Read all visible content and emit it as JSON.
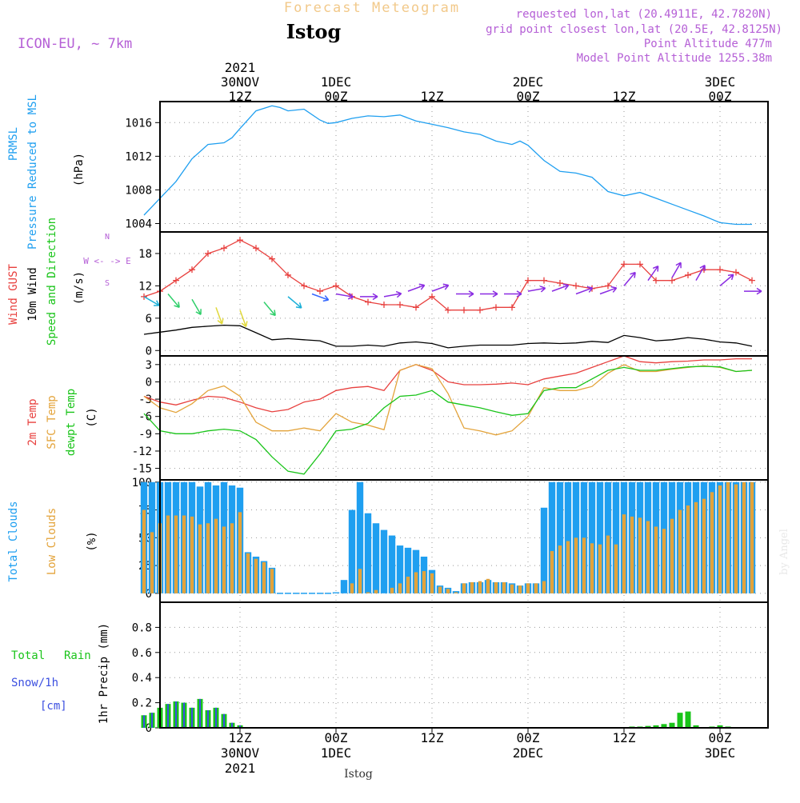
{
  "header": {
    "app_title": "Forecast Meteogram",
    "location": "Istog",
    "model": "ICON-EU, ~ 7km",
    "requested": "requested lon,lat (20.4911E, 42.7820N)",
    "gridpoint": "grid point closest lon,lat (20.5E, 42.8125N)",
    "point_alt": "Point Altitude 477m",
    "model_alt": "Model Point Altitude 1255.38m",
    "watermark": "by Angel",
    "footer": "Istog"
  },
  "colors": {
    "blue": "#1f9ff0",
    "red": "#e8403e",
    "orange": "#e3a33a",
    "green": "#19c419",
    "purple": "#b55fd6",
    "black": "#000000"
  },
  "time_axis": {
    "top": [
      {
        "hour": 12,
        "l1": "12Z",
        "l2": "30NOV",
        "l3": "2021"
      },
      {
        "hour": 24,
        "l1": "00Z",
        "l2": "1DEC"
      },
      {
        "hour": 36,
        "l1": "12Z"
      },
      {
        "hour": 48,
        "l1": "00Z",
        "l2": "2DEC"
      },
      {
        "hour": 60,
        "l1": "12Z"
      },
      {
        "hour": 72,
        "l1": "00Z",
        "l2": "3DEC"
      }
    ],
    "bottom": [
      {
        "hour": 12,
        "l1": "12Z",
        "l2": "30NOV",
        "l3": "2021"
      },
      {
        "hour": 24,
        "l1": "00Z",
        "l2": "1DEC"
      },
      {
        "hour": 36,
        "l1": "12Z"
      },
      {
        "hour": 48,
        "l1": "00Z",
        "l2": "2DEC"
      },
      {
        "hour": 60,
        "l1": "12Z"
      },
      {
        "hour": 72,
        "l1": "00Z",
        "l2": "3DEC"
      }
    ]
  },
  "chart_data": [
    {
      "type": "line",
      "id": "pressure",
      "labels": {
        "l1": "PRMSL",
        "l2": "Pressure Reduced to MSL",
        "unit": "(hPa)"
      },
      "yticks": [
        1004,
        1008,
        1012,
        1016
      ],
      "ylim": [
        1003,
        1018.5
      ],
      "x": [
        0,
        2,
        4,
        6,
        8,
        10,
        11,
        12,
        14,
        16,
        17,
        18,
        20,
        22,
        23,
        24,
        26,
        28,
        30,
        32,
        34,
        36,
        38,
        40,
        42,
        44,
        46,
        47,
        48,
        50,
        52,
        54,
        56,
        58,
        60,
        62,
        64,
        66,
        68,
        70,
        72,
        74,
        76
      ],
      "series": [
        {
          "name": "PRMSL",
          "color": "#1f9ff0",
          "values": [
            1005,
            1007,
            1009,
            1011.7,
            1013.4,
            1013.6,
            1014.2,
            1015.3,
            1017.4,
            1018,
            1017.8,
            1017.4,
            1017.6,
            1016.3,
            1015.9,
            1016,
            1016.5,
            1016.8,
            1016.7,
            1016.9,
            1016.2,
            1015.8,
            1015.4,
            1014.9,
            1014.6,
            1013.8,
            1013.4,
            1013.8,
            1013.3,
            1011.5,
            1010.2,
            1010,
            1009.5,
            1007.8,
            1007.3,
            1007.7,
            1007,
            1006.3,
            1005.6,
            1004.9,
            1004.1,
            1003.9,
            1003.9
          ]
        }
      ]
    },
    {
      "type": "line",
      "id": "wind",
      "labels": {
        "gust": "Wind GUST",
        "wind10": "10m Wind",
        "speed": "Speed and Direction",
        "unit": "(m/s)",
        "compass": "W <- -> E",
        "compass_n": "N",
        "compass_s": "S"
      },
      "yticks": [
        0,
        6,
        12,
        18
      ],
      "ylim": [
        -1,
        22
      ],
      "x": [
        0,
        2,
        4,
        6,
        8,
        10,
        12,
        14,
        16,
        18,
        20,
        22,
        24,
        26,
        28,
        30,
        32,
        34,
        36,
        38,
        40,
        42,
        44,
        46,
        48,
        50,
        52,
        54,
        56,
        58,
        60,
        62,
        64,
        66,
        68,
        70,
        72,
        74,
        76
      ],
      "series": [
        {
          "name": "Wind GUST",
          "color": "#e8403e",
          "marker": "+",
          "values": [
            10,
            11,
            13,
            15,
            18,
            19,
            20.5,
            19,
            17,
            14,
            12,
            11,
            12,
            10,
            9,
            8.5,
            8.5,
            8,
            10,
            7.5,
            7.5,
            7.5,
            8,
            8,
            13,
            13,
            12.5,
            12,
            11.5,
            12,
            16,
            16,
            13,
            13,
            14,
            15,
            15,
            14.5,
            13
          ]
        },
        {
          "name": "10m Wind",
          "color": "#000000",
          "values": [
            3,
            3.4,
            3.8,
            4.3,
            4.5,
            4.7,
            4.6,
            3.3,
            2,
            2.2,
            2,
            1.8,
            0.8,
            0.8,
            1,
            0.8,
            1.4,
            1.6,
            1.3,
            0.5,
            0.8,
            1,
            1,
            1,
            1.3,
            1.4,
            1.3,
            1.4,
            1.7,
            1.5,
            2.8,
            2.4,
            1.8,
            2,
            2.4,
            2.1,
            1.6,
            1.4,
            0.8
          ]
        }
      ],
      "arrows": {
        "x": [
          0,
          3,
          6,
          9,
          12,
          15,
          18,
          21,
          24,
          27,
          30,
          33,
          36,
          39,
          42,
          45,
          48,
          51,
          54,
          57,
          60,
          63,
          66,
          69,
          72,
          75
        ],
        "speed": [
          10,
          10.5,
          9.5,
          8,
          7.5,
          9,
          10,
          10.5,
          10.5,
          10,
          10,
          11,
          11,
          10.5,
          10.5,
          10.5,
          11,
          11,
          10.5,
          10.5,
          12,
          13,
          13.5,
          13,
          12,
          11
        ],
        "dir": [
          300,
          320,
          330,
          340,
          340,
          320,
          310,
          290,
          280,
          270,
          260,
          250,
          250,
          270,
          270,
          270,
          260,
          250,
          250,
          250,
          220,
          215,
          210,
          210,
          230,
          270
        ]
      }
    },
    {
      "type": "line",
      "id": "temp",
      "labels": {
        "t2m": "2m Temp",
        "sfc": "SFC Temp",
        "dewpt": "dewpt Temp",
        "unit": "(C)"
      },
      "yticks": [
        3,
        0,
        -3,
        -6,
        -9,
        -12,
        -15
      ],
      "ylim": [
        -17,
        4.5
      ],
      "x": [
        0,
        2,
        4,
        6,
        8,
        10,
        12,
        14,
        16,
        18,
        20,
        22,
        24,
        26,
        28,
        30,
        32,
        34,
        36,
        38,
        40,
        42,
        44,
        46,
        48,
        50,
        52,
        54,
        56,
        58,
        60,
        62,
        64,
        66,
        68,
        70,
        72,
        74,
        76
      ],
      "series": [
        {
          "name": "2m Temp",
          "color": "#e8403e",
          "values": [
            -2.5,
            -3.5,
            -4,
            -3.2,
            -2.5,
            -2.7,
            -3.5,
            -4.5,
            -5.2,
            -4.8,
            -3.5,
            -3,
            -1.5,
            -1,
            -0.8,
            -1.5,
            2,
            3,
            2,
            0,
            -0.5,
            -0.5,
            -0.4,
            -0.2,
            -0.5,
            0.5,
            1,
            1.5,
            2.5,
            3.5,
            4.5,
            3.5,
            3.3,
            3.5,
            3.6,
            3.8,
            3.8,
            4,
            4
          ]
        },
        {
          "name": "SFC Temp",
          "color": "#e3a33a",
          "values": [
            -2.5,
            -4.5,
            -5.3,
            -3.8,
            -1.5,
            -0.7,
            -2.5,
            -7,
            -8.5,
            -8.5,
            -8,
            -8.5,
            -5.5,
            -7,
            -7.5,
            -8.3,
            2,
            3,
            2.3,
            -2,
            -8,
            -8.5,
            -9.2,
            -8.5,
            -6,
            -1,
            -1.5,
            -1.5,
            -0.8,
            1.5,
            3,
            1.8,
            1.8,
            2.2,
            2.5,
            2.8,
            2.5,
            1.8,
            2
          ]
        },
        {
          "name": "dewpt Temp",
          "color": "#19c419",
          "values": [
            -5.5,
            -8.5,
            -9,
            -9,
            -8.5,
            -8.2,
            -8.5,
            -10,
            -13,
            -15.5,
            -16,
            -12.5,
            -8.5,
            -8.2,
            -7.2,
            -4.5,
            -2.5,
            -2.3,
            -1.5,
            -3.5,
            -4,
            -4.5,
            -5.2,
            -5.8,
            -5.5,
            -1.5,
            -1,
            -1,
            0.5,
            2,
            2.5,
            2,
            2,
            2.3,
            2.6,
            2.7,
            2.6,
            1.8,
            2
          ]
        }
      ]
    },
    {
      "type": "bar",
      "id": "clouds",
      "labels": {
        "total": "Total Clouds",
        "low": "Low Clouds",
        "unit": "(%)"
      },
      "yticks": [
        0,
        25,
        50,
        75,
        100
      ],
      "ylim": [
        -8,
        102
      ],
      "x": [
        0,
        1,
        2,
        3,
        4,
        5,
        6,
        7,
        8,
        9,
        10,
        11,
        12,
        13,
        14,
        15,
        16,
        17,
        18,
        19,
        20,
        21,
        22,
        23,
        24,
        25,
        26,
        27,
        28,
        29,
        30,
        31,
        32,
        33,
        34,
        35,
        36,
        37,
        38,
        39,
        40,
        41,
        42,
        43,
        44,
        45,
        46,
        47,
        48,
        49,
        50,
        51,
        52,
        53,
        54,
        55,
        56,
        57,
        58,
        59,
        60,
        61,
        62,
        63,
        64,
        65,
        66,
        67,
        68,
        69,
        70,
        71,
        72,
        73,
        74,
        75,
        76
      ],
      "series": [
        {
          "name": "Total Clouds",
          "color": "#1f9ff0",
          "values": [
            100,
            100,
            100,
            100,
            100,
            100,
            100,
            96,
            100,
            97,
            100,
            97,
            95,
            37,
            33,
            29,
            23,
            0,
            0,
            0,
            0,
            0,
            0,
            0,
            1,
            12,
            75,
            100,
            72,
            63,
            57,
            52,
            43,
            41,
            39,
            33,
            21,
            7,
            5,
            2,
            9,
            10,
            10,
            12,
            10,
            10,
            9,
            7,
            9,
            9,
            77,
            100,
            100,
            100,
            100,
            100,
            100,
            100,
            100,
            100,
            100,
            100,
            100,
            100,
            100,
            100,
            100,
            100,
            100,
            100,
            100,
            100,
            100,
            100,
            100,
            100,
            100
          ]
        },
        {
          "name": "Low Clouds",
          "color": "#e3a33a",
          "values": [
            75,
            55,
            63,
            70,
            70,
            70,
            69,
            62,
            63,
            67,
            60,
            63,
            73,
            36,
            31,
            28,
            22,
            0,
            0,
            0,
            0,
            0,
            0,
            0,
            0,
            0,
            9,
            22,
            1,
            3,
            0,
            5,
            9,
            15,
            19,
            20,
            18,
            6,
            4,
            1,
            9,
            10,
            11,
            13,
            10,
            10,
            8,
            7,
            9,
            9,
            11,
            38,
            43,
            47,
            50,
            50,
            45,
            44,
            52,
            44,
            71,
            69,
            68,
            65,
            60,
            58,
            67,
            75,
            79,
            82,
            85,
            91,
            97,
            100,
            98,
            100,
            100
          ]
        }
      ]
    },
    {
      "type": "bar",
      "id": "precip",
      "labels": {
        "total": "Total",
        "rain": "Rain",
        "snow": "Snow/1h",
        "cm": "[cm]",
        "axis": "1hr Precip (mm)"
      },
      "yticks": [
        0,
        0.2,
        0.4,
        0.6,
        0.8
      ],
      "ylim": [
        0,
        1
      ],
      "x": [
        0,
        1,
        2,
        3,
        4,
        5,
        6,
        7,
        8,
        9,
        10,
        11,
        12,
        13,
        14,
        15,
        16,
        17,
        18,
        19,
        20,
        21,
        22,
        23,
        24,
        25,
        26,
        27,
        28,
        29,
        30,
        31,
        32,
        33,
        34,
        35,
        36,
        37,
        38,
        39,
        40,
        41,
        42,
        43,
        44,
        45,
        46,
        47,
        48,
        49,
        50,
        51,
        52,
        53,
        54,
        55,
        56,
        57,
        58,
        59,
        60,
        61,
        62,
        63,
        64,
        65,
        66,
        67,
        68,
        69,
        70,
        71,
        72,
        73,
        74,
        75,
        76
      ],
      "series": [
        {
          "name": "Total Rain",
          "color": "#19c419",
          "values": [
            0.1,
            0.12,
            0.16,
            0.19,
            0.21,
            0.2,
            0.16,
            0.23,
            0.14,
            0.16,
            0.11,
            0.04,
            0.02,
            0,
            0,
            0,
            0,
            0,
            0,
            0,
            0,
            0,
            0,
            0,
            0,
            0,
            0,
            0,
            0,
            0,
            0,
            0,
            0,
            0,
            0,
            0,
            0,
            0,
            0,
            0,
            0,
            0,
            0,
            0,
            0,
            0,
            0,
            0,
            0,
            0,
            0,
            0,
            0,
            0,
            0,
            0,
            0,
            0,
            0,
            0,
            0,
            0.01,
            0.01,
            0.015,
            0.02,
            0.03,
            0.04,
            0.12,
            0.13,
            0.02,
            0,
            0.01,
            0.02,
            0.01,
            0,
            0,
            0
          ]
        },
        {
          "name": "Snow/1h",
          "color": "#3b4fe0",
          "values": [
            0.1,
            0.12,
            0.16,
            0.19,
            0.21,
            0.2,
            0.16,
            0.23,
            0.14,
            0.16,
            0.11,
            0.04,
            0.02,
            0,
            0,
            0,
            0,
            0,
            0,
            0,
            0,
            0,
            0,
            0,
            0,
            0,
            0,
            0,
            0,
            0,
            0,
            0,
            0,
            0,
            0,
            0,
            0,
            0,
            0,
            0,
            0,
            0,
            0,
            0,
            0,
            0,
            0,
            0,
            0,
            0,
            0,
            0,
            0,
            0,
            0,
            0,
            0,
            0,
            0,
            0,
            0,
            0,
            0,
            0,
            0,
            0,
            0,
            0,
            0,
            0,
            0,
            0,
            0,
            0,
            0,
            0,
            0
          ]
        }
      ]
    }
  ]
}
